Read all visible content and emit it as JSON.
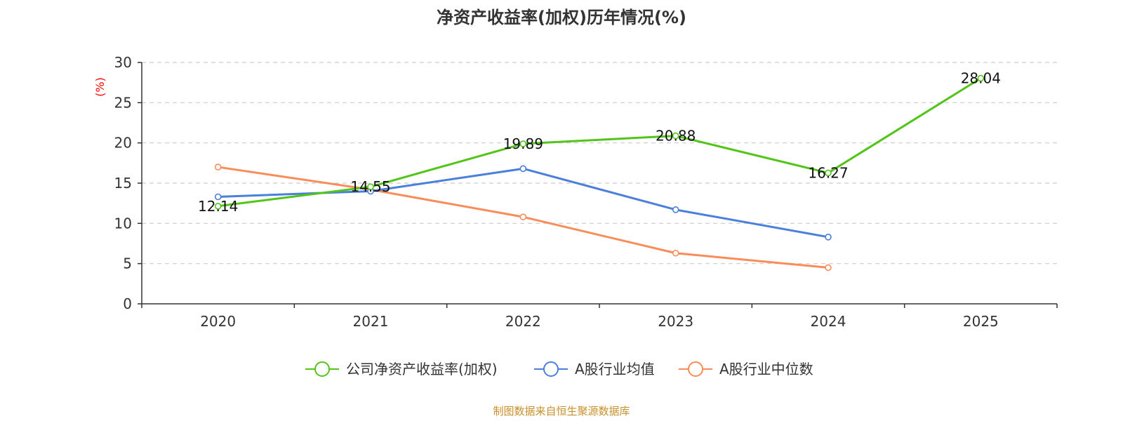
{
  "colors": {
    "company": "#52c41a",
    "average": "#4a7fdb",
    "median": "#fa8c5a",
    "source": "#c8902a",
    "ylabel": "#ff0000"
  },
  "chart_data": {
    "type": "line",
    "title": "净资产收益率(加权)历年情况(%)",
    "ylabel": "(%)",
    "xlabel": "",
    "categories": [
      "2020",
      "2021",
      "2022",
      "2023",
      "2024",
      "2025"
    ],
    "ylim": [
      0,
      30
    ],
    "yticks": [
      0,
      5,
      10,
      15,
      20,
      25,
      30
    ],
    "grid": true,
    "legend_position": "bottom-center",
    "series": [
      {
        "name": "公司净资产收益率(加权)",
        "color_key": "company",
        "values": [
          12.14,
          14.55,
          19.89,
          20.88,
          16.27,
          28.04
        ],
        "labels": [
          "12.14",
          "14.55",
          "19.89",
          "20.88",
          "16.27",
          "28.04"
        ],
        "show_labels": true
      },
      {
        "name": "A股行业均值",
        "color_key": "average",
        "values": [
          13.3,
          14.0,
          16.8,
          11.7,
          8.3,
          null
        ],
        "show_labels": false
      },
      {
        "name": "A股行业中位数",
        "color_key": "median",
        "values": [
          17.0,
          14.2,
          10.8,
          6.3,
          4.5,
          null
        ],
        "show_labels": false
      }
    ]
  },
  "source_text": "制图数据来自恒生聚源数据库"
}
